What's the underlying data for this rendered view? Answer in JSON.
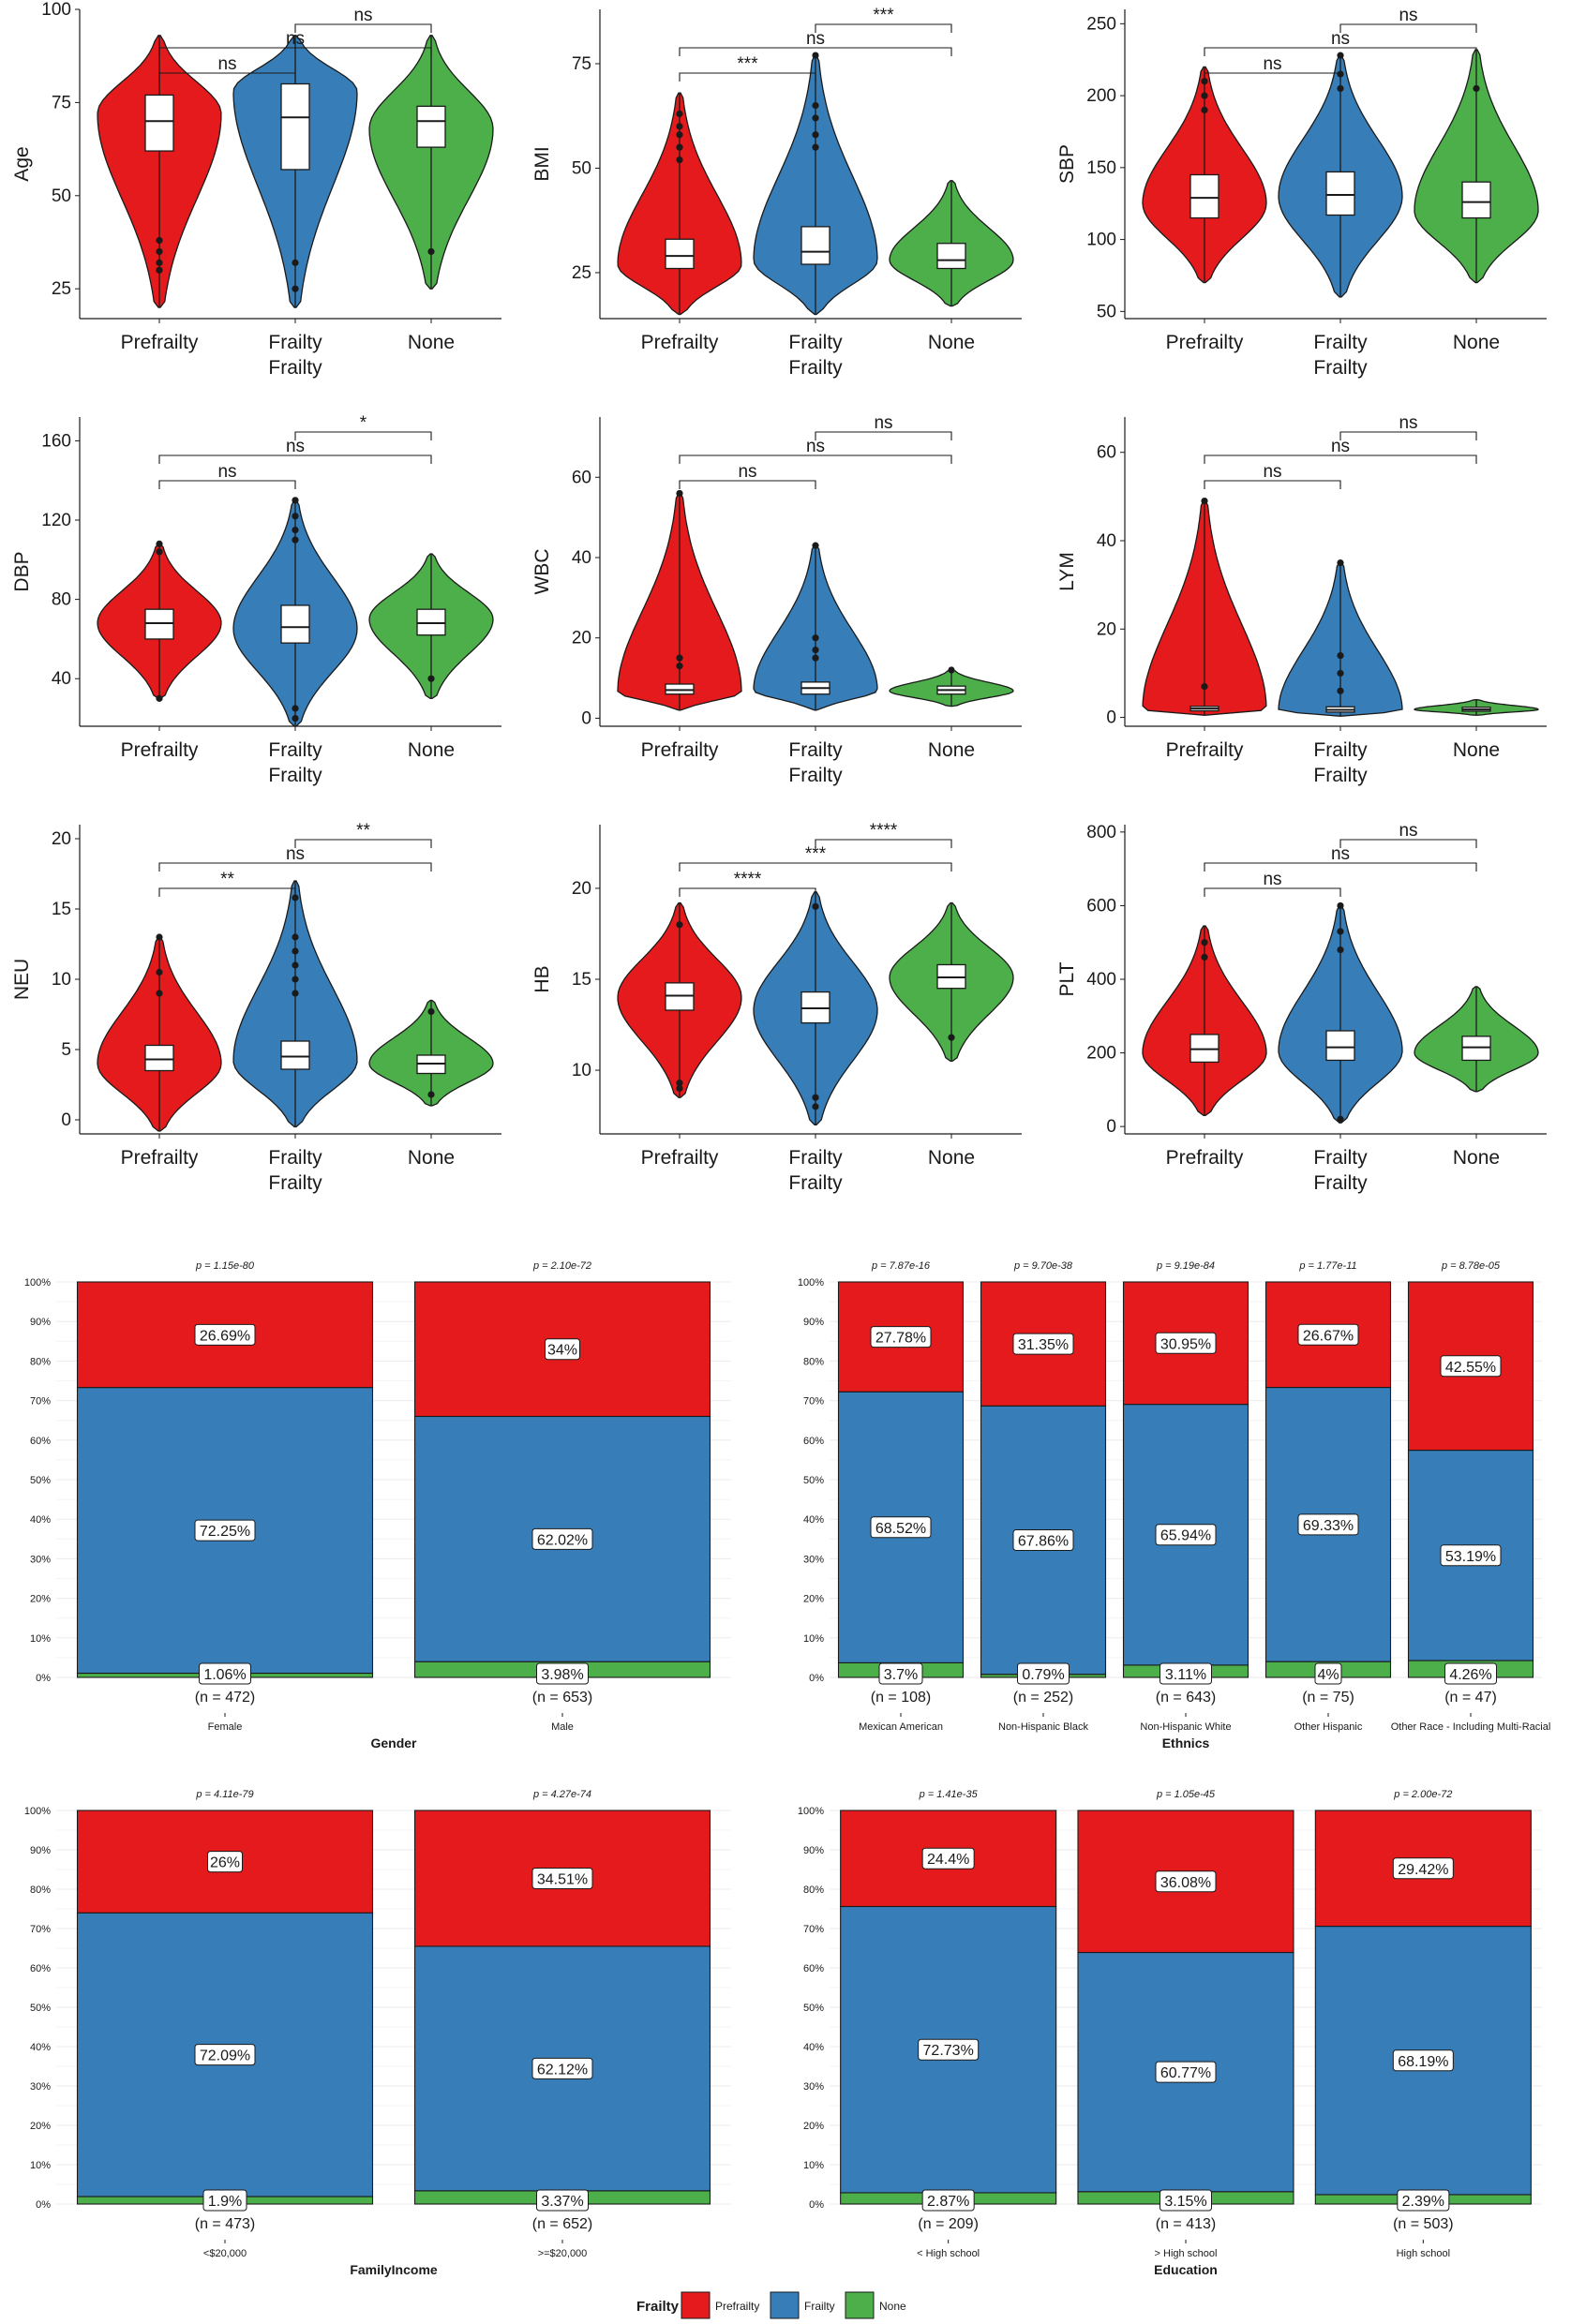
{
  "figure": {
    "groups": [
      "Prefrailty",
      "Frailty",
      "None"
    ]
  },
  "colors": {
    "Prefrailty": "#e41a1c",
    "Frailty": "#377eb8",
    "None": "#4daf4a",
    "stroke": "#1a1a1a",
    "grid": "#ebebeb"
  },
  "chart_data": [
    {
      "type": "violin",
      "ylabel": "Age",
      "xlabel": "Frailty",
      "ylim": [
        17,
        100
      ],
      "yticks": [
        25,
        50,
        75,
        100
      ],
      "categories": [
        "Prefrailty",
        "Frailty",
        "None"
      ],
      "series": [
        {
          "name": "Prefrailty",
          "min": 20,
          "q1": 62,
          "median": 70,
          "q3": 77,
          "max": 93,
          "mode": 72,
          "outliers": [
            38,
            35,
            32,
            30
          ]
        },
        {
          "name": "Frailty",
          "min": 20,
          "q1": 57,
          "median": 71,
          "q3": 80,
          "max": 93,
          "mode": 78,
          "outliers": [
            32,
            25
          ]
        },
        {
          "name": "None",
          "min": 25,
          "q1": 63,
          "median": 70,
          "q3": 74,
          "max": 93,
          "mode": 68,
          "outliers": [
            35
          ]
        }
      ],
      "comparisons": [
        {
          "pair": [
            "Prefrailty",
            "Frailty"
          ],
          "label": "ns"
        },
        {
          "pair": [
            "Prefrailty",
            "None"
          ],
          "label": "ns"
        },
        {
          "pair": [
            "Frailty",
            "None"
          ],
          "label": "ns"
        }
      ]
    },
    {
      "type": "violin",
      "ylabel": "BMI",
      "xlabel": "Frailty",
      "ylim": [
        14,
        88
      ],
      "yticks": [
        25,
        50,
        75
      ],
      "categories": [
        "Prefrailty",
        "Frailty",
        "None"
      ],
      "series": [
        {
          "name": "Prefrailty",
          "min": 15,
          "q1": 26,
          "median": 29,
          "q3": 33,
          "max": 68,
          "mode": 27,
          "outliers": [
            63,
            60,
            58,
            55,
            52
          ]
        },
        {
          "name": "Frailty",
          "min": 15,
          "q1": 27,
          "median": 30,
          "q3": 36,
          "max": 77,
          "mode": 28,
          "outliers": [
            77,
            65,
            62,
            58,
            55
          ]
        },
        {
          "name": "None",
          "min": 17,
          "q1": 26,
          "median": 28,
          "q3": 32,
          "max": 47,
          "mode": 28,
          "outliers": []
        }
      ],
      "comparisons": [
        {
          "pair": [
            "Prefrailty",
            "Frailty"
          ],
          "label": "***"
        },
        {
          "pair": [
            "Prefrailty",
            "None"
          ],
          "label": "ns"
        },
        {
          "pair": [
            "Frailty",
            "None"
          ],
          "label": "***"
        }
      ]
    },
    {
      "type": "violin",
      "ylabel": "SBP",
      "xlabel": "Frailty",
      "ylim": [
        45,
        260
      ],
      "yticks": [
        50,
        100,
        150,
        200,
        250
      ],
      "categories": [
        "Prefrailty",
        "Frailty",
        "None"
      ],
      "series": [
        {
          "name": "Prefrailty",
          "min": 70,
          "q1": 115,
          "median": 129,
          "q3": 145,
          "max": 220,
          "mode": 125,
          "outliers": [
            210,
            200,
            190
          ]
        },
        {
          "name": "Frailty",
          "min": 60,
          "q1": 117,
          "median": 131,
          "q3": 147,
          "max": 228,
          "mode": 130,
          "outliers": [
            228,
            215,
            205
          ]
        },
        {
          "name": "None",
          "min": 70,
          "q1": 115,
          "median": 126,
          "q3": 140,
          "max": 232,
          "mode": 120,
          "outliers": [
            205
          ]
        }
      ],
      "comparisons": [
        {
          "pair": [
            "Prefrailty",
            "Frailty"
          ],
          "label": "ns"
        },
        {
          "pair": [
            "Prefrailty",
            "None"
          ],
          "label": "ns"
        },
        {
          "pair": [
            "Frailty",
            "None"
          ],
          "label": "ns"
        }
      ]
    },
    {
      "type": "violin",
      "ylabel": "DBP",
      "xlabel": "Frailty",
      "ylim": [
        16,
        172
      ],
      "yticks": [
        40,
        80,
        120,
        160
      ],
      "categories": [
        "Prefrailty",
        "Frailty",
        "None"
      ],
      "series": [
        {
          "name": "Prefrailty",
          "min": 30,
          "q1": 60,
          "median": 68,
          "q3": 75,
          "max": 108,
          "mode": 68,
          "outliers": [
            108,
            104,
            30
          ]
        },
        {
          "name": "Frailty",
          "min": 16,
          "q1": 58,
          "median": 66,
          "q3": 77,
          "max": 130,
          "mode": 65,
          "outliers": [
            130,
            122,
            115,
            110,
            25,
            20
          ]
        },
        {
          "name": "None",
          "min": 30,
          "q1": 62,
          "median": 68,
          "q3": 75,
          "max": 103,
          "mode": 70,
          "outliers": [
            40
          ]
        }
      ],
      "comparisons": [
        {
          "pair": [
            "Prefrailty",
            "Frailty"
          ],
          "label": "ns"
        },
        {
          "pair": [
            "Prefrailty",
            "None"
          ],
          "label": "ns"
        },
        {
          "pair": [
            "Frailty",
            "None"
          ],
          "label": "*"
        }
      ]
    },
    {
      "type": "violin",
      "ylabel": "WBC",
      "xlabel": "Frailty",
      "ylim": [
        -2,
        75
      ],
      "yticks": [
        0,
        20,
        40,
        60
      ],
      "categories": [
        "Prefrailty",
        "Frailty",
        "None"
      ],
      "series": [
        {
          "name": "Prefrailty",
          "min": 2,
          "q1": 6,
          "median": 7,
          "q3": 8.5,
          "max": 56,
          "mode": 6.5,
          "outliers": [
            56,
            15,
            13
          ]
        },
        {
          "name": "Frailty",
          "min": 2,
          "q1": 6,
          "median": 7.5,
          "q3": 9,
          "max": 43,
          "mode": 7,
          "outliers": [
            43,
            20,
            17,
            15
          ]
        },
        {
          "name": "None",
          "min": 3,
          "q1": 6,
          "median": 7,
          "q3": 8,
          "max": 12,
          "mode": 6.8,
          "outliers": [
            12
          ]
        }
      ],
      "comparisons": [
        {
          "pair": [
            "Prefrailty",
            "Frailty"
          ],
          "label": "ns"
        },
        {
          "pair": [
            "Prefrailty",
            "None"
          ],
          "label": "ns"
        },
        {
          "pair": [
            "Frailty",
            "None"
          ],
          "label": "ns"
        }
      ]
    },
    {
      "type": "violin",
      "ylabel": "LYM",
      "xlabel": "Frailty",
      "ylim": [
        -2,
        68
      ],
      "yticks": [
        0,
        20,
        40,
        60
      ],
      "categories": [
        "Prefrailty",
        "Frailty",
        "None"
      ],
      "series": [
        {
          "name": "Prefrailty",
          "min": 0.5,
          "q1": 1.5,
          "median": 2,
          "q3": 2.5,
          "max": 49,
          "mode": 1.8,
          "outliers": [
            49,
            7
          ]
        },
        {
          "name": "Frailty",
          "min": 0.3,
          "q1": 1.2,
          "median": 1.7,
          "q3": 2.4,
          "max": 35,
          "mode": 1.5,
          "outliers": [
            35,
            14,
            10,
            6
          ]
        },
        {
          "name": "None",
          "min": 0.5,
          "q1": 1.4,
          "median": 1.8,
          "q3": 2.3,
          "max": 4,
          "mode": 1.8,
          "outliers": []
        }
      ],
      "comparisons": [
        {
          "pair": [
            "Prefrailty",
            "Frailty"
          ],
          "label": "ns"
        },
        {
          "pair": [
            "Prefrailty",
            "None"
          ],
          "label": "ns"
        },
        {
          "pair": [
            "Frailty",
            "None"
          ],
          "label": "ns"
        }
      ]
    },
    {
      "type": "violin",
      "ylabel": "NEU",
      "xlabel": "Frailty",
      "ylim": [
        -1,
        21
      ],
      "yticks": [
        0,
        5,
        10,
        15,
        20
      ],
      "categories": [
        "Prefrailty",
        "Frailty",
        "None"
      ],
      "series": [
        {
          "name": "Prefrailty",
          "min": -0.8,
          "q1": 3.5,
          "median": 4.3,
          "q3": 5.3,
          "max": 13,
          "mode": 4,
          "outliers": [
            13,
            10.5,
            9
          ]
        },
        {
          "name": "Frailty",
          "min": -0.5,
          "q1": 3.6,
          "median": 4.5,
          "q3": 5.6,
          "max": 17,
          "mode": 4.2,
          "outliers": [
            15.8,
            13,
            12,
            11,
            10,
            9
          ]
        },
        {
          "name": "None",
          "min": 1,
          "q1": 3.3,
          "median": 4,
          "q3": 4.6,
          "max": 8.5,
          "mode": 4,
          "outliers": [
            7.7,
            1.8
          ]
        }
      ],
      "comparisons": [
        {
          "pair": [
            "Prefrailty",
            "Frailty"
          ],
          "label": "**"
        },
        {
          "pair": [
            "Prefrailty",
            "None"
          ],
          "label": "ns"
        },
        {
          "pair": [
            "Frailty",
            "None"
          ],
          "label": "**"
        }
      ]
    },
    {
      "type": "violin",
      "ylabel": "HB",
      "xlabel": "Frailty",
      "ylim": [
        6.5,
        23.5
      ],
      "yticks": [
        10,
        15,
        20
      ],
      "categories": [
        "Prefrailty",
        "Frailty",
        "None"
      ],
      "series": [
        {
          "name": "Prefrailty",
          "min": 8.5,
          "q1": 13.3,
          "median": 14.1,
          "q3": 14.8,
          "max": 19.2,
          "mode": 14,
          "outliers": [
            18,
            9.3,
            9
          ]
        },
        {
          "name": "Frailty",
          "min": 7,
          "q1": 12.6,
          "median": 13.4,
          "q3": 14.3,
          "max": 19.8,
          "mode": 13.3,
          "outliers": [
            19,
            8.5,
            8
          ]
        },
        {
          "name": "None",
          "min": 10.5,
          "q1": 14.5,
          "median": 15.1,
          "q3": 15.8,
          "max": 19.2,
          "mode": 15.1,
          "outliers": [
            11.8
          ]
        }
      ],
      "comparisons": [
        {
          "pair": [
            "Prefrailty",
            "Frailty"
          ],
          "label": "****"
        },
        {
          "pair": [
            "Prefrailty",
            "None"
          ],
          "label": "***"
        },
        {
          "pair": [
            "Frailty",
            "None"
          ],
          "label": "****"
        }
      ]
    },
    {
      "type": "violin",
      "ylabel": "PLT",
      "xlabel": "Frailty",
      "ylim": [
        -20,
        820
      ],
      "yticks": [
        0,
        200,
        400,
        600,
        800
      ],
      "categories": [
        "Prefrailty",
        "Frailty",
        "None"
      ],
      "series": [
        {
          "name": "Prefrailty",
          "min": 30,
          "q1": 175,
          "median": 210,
          "q3": 250,
          "max": 545,
          "mode": 200,
          "outliers": [
            500,
            460
          ]
        },
        {
          "name": "Frailty",
          "min": 10,
          "q1": 180,
          "median": 215,
          "q3": 260,
          "max": 600,
          "mode": 205,
          "outliers": [
            600,
            530,
            480,
            20
          ]
        },
        {
          "name": "None",
          "min": 95,
          "q1": 180,
          "median": 215,
          "q3": 245,
          "max": 380,
          "mode": 200,
          "outliers": []
        }
      ],
      "comparisons": [
        {
          "pair": [
            "Prefrailty",
            "Frailty"
          ],
          "label": "ns"
        },
        {
          "pair": [
            "Prefrailty",
            "None"
          ],
          "label": "ns"
        },
        {
          "pair": [
            "Frailty",
            "None"
          ],
          "label": "ns"
        }
      ]
    },
    {
      "type": "stacked-bar",
      "xlabel": "Gender",
      "ylabel": "",
      "yticks": [
        "0%",
        "10%",
        "20%",
        "30%",
        "40%",
        "50%",
        "60%",
        "70%",
        "80%",
        "90%",
        "100%"
      ],
      "series_order": [
        "Prefrailty",
        "Frailty",
        "None"
      ],
      "categories": [
        {
          "label": "Female",
          "n": "(n = 472)",
          "p": "p = 1.15e-80",
          "Prefrailty": 26.69,
          "Frailty": 72.25,
          "None": 1.06,
          "labels": [
            "26.69%",
            "72.25%",
            "1.06%"
          ]
        },
        {
          "label": "Male",
          "n": "(n = 653)",
          "p": "p = 2.10e-72",
          "Prefrailty": 34,
          "Frailty": 62.02,
          "None": 3.98,
          "labels": [
            "34%",
            "62.02%",
            "3.98%"
          ]
        }
      ]
    },
    {
      "type": "stacked-bar",
      "xlabel": "Ethnics",
      "ylabel": "",
      "yticks": [
        "0%",
        "10%",
        "20%",
        "30%",
        "40%",
        "50%",
        "60%",
        "70%",
        "80%",
        "90%",
        "100%"
      ],
      "series_order": [
        "Prefrailty",
        "Frailty",
        "None"
      ],
      "categories": [
        {
          "label": "Mexican American",
          "n": "(n = 108)",
          "p": "p = 7.87e-16",
          "Prefrailty": 27.78,
          "Frailty": 68.52,
          "None": 3.7,
          "labels": [
            "27.78%",
            "68.52%",
            "3.7%"
          ]
        },
        {
          "label": "Non-Hispanic Black",
          "n": "(n = 252)",
          "p": "p = 9.70e-38",
          "Prefrailty": 31.35,
          "Frailty": 67.86,
          "None": 0.79,
          "labels": [
            "31.35%",
            "67.86%",
            "0.79%"
          ]
        },
        {
          "label": "Non-Hispanic White",
          "n": "(n = 643)",
          "p": "p = 9.19e-84",
          "Prefrailty": 30.95,
          "Frailty": 65.94,
          "None": 3.11,
          "labels": [
            "30.95%",
            "65.94%",
            "3.11%"
          ]
        },
        {
          "label": "Other Hispanic",
          "n": "(n = 75)",
          "p": "p = 1.77e-11",
          "Prefrailty": 26.67,
          "Frailty": 69.33,
          "None": 4,
          "labels": [
            "26.67%",
            "69.33%",
            "4%"
          ]
        },
        {
          "label": "Other Race - Including Multi-Racial",
          "n": "(n = 47)",
          "p": "p = 8.78e-05",
          "Prefrailty": 42.55,
          "Frailty": 53.19,
          "None": 4.26,
          "labels": [
            "42.55%",
            "53.19%",
            "4.26%"
          ]
        }
      ]
    },
    {
      "type": "stacked-bar",
      "xlabel": "FamilyIncome",
      "ylabel": "",
      "yticks": [
        "0%",
        "10%",
        "20%",
        "30%",
        "40%",
        "50%",
        "60%",
        "70%",
        "80%",
        "90%",
        "100%"
      ],
      "series_order": [
        "Prefrailty",
        "Frailty",
        "None"
      ],
      "categories": [
        {
          "label": "<$20,000",
          "n": "(n = 473)",
          "p": "p = 4.11e-79",
          "Prefrailty": 26,
          "Frailty": 72.09,
          "None": 1.9,
          "labels": [
            "26%",
            "72.09%",
            "1.9%"
          ]
        },
        {
          "label": ">=$20,000",
          "n": "(n = 652)",
          "p": "p = 4.27e-74",
          "Prefrailty": 34.51,
          "Frailty": 62.12,
          "None": 3.37,
          "labels": [
            "34.51%",
            "62.12%",
            "3.37%"
          ]
        }
      ]
    },
    {
      "type": "stacked-bar",
      "xlabel": "Education",
      "ylabel": "",
      "yticks": [
        "0%",
        "10%",
        "20%",
        "30%",
        "40%",
        "50%",
        "60%",
        "70%",
        "80%",
        "90%",
        "100%"
      ],
      "series_order": [
        "Prefrailty",
        "Frailty",
        "None"
      ],
      "categories": [
        {
          "label": "< High school",
          "n": "(n = 209)",
          "p": "p = 1.41e-35",
          "Prefrailty": 24.4,
          "Frailty": 72.73,
          "None": 2.87,
          "labels": [
            "24.4%",
            "72.73%",
            "2.87%"
          ]
        },
        {
          "label": "> High school",
          "n": "(n = 413)",
          "p": "p = 1.05e-45",
          "Prefrailty": 36.08,
          "Frailty": 60.77,
          "None": 3.15,
          "labels": [
            "36.08%",
            "60.77%",
            "3.15%"
          ]
        },
        {
          "label": "High school",
          "n": "(n = 503)",
          "p": "p = 2.00e-72",
          "Prefrailty": 29.42,
          "Frailty": 68.19,
          "None": 2.39,
          "labels": [
            "29.42%",
            "68.19%",
            "2.39%"
          ]
        }
      ]
    }
  ],
  "legend": {
    "title": "Frailty",
    "items": [
      "Prefrailty",
      "Frailty",
      "None"
    ]
  }
}
